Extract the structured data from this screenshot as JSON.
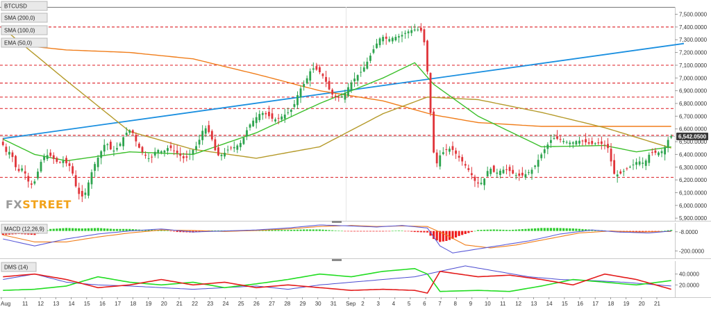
{
  "symbol": "BTCUSD",
  "watermark": {
    "fx": "FX",
    "street": "STREET"
  },
  "colors": {
    "bull": "#2da44e",
    "bear": "#e0343a",
    "sma200": "#f07d1a",
    "sma100": "#b59a2a",
    "ema50": "#3bbf2a",
    "trendline": "#1a8fe0",
    "level": "#e0343a",
    "macd": "#5a5ad8",
    "signal": "#f07d1a",
    "hist_pos": "#2ecc2e",
    "hist_neg": "#ee1c1c",
    "dms_plus": "#22dd22",
    "dms_minus": "#e31b1b",
    "adx": "#4a4ad0"
  },
  "chart_data": [
    {
      "type": "candlestick",
      "panel": "price",
      "title": "BTCUSD",
      "x_ticks": [
        "Aug",
        "11",
        "12",
        "13",
        "14",
        "15",
        "16",
        "17",
        "18",
        "19",
        "20",
        "21",
        "22",
        "23",
        "24",
        "25",
        "26",
        "27",
        "28",
        "29",
        "30",
        "31",
        "Sep",
        "2",
        "3",
        "4",
        "5",
        "6",
        "7",
        "8",
        "9",
        "10",
        "11",
        "12",
        "13",
        "14",
        "15",
        "16",
        "17",
        "18",
        "19",
        "20",
        "21"
      ],
      "y_ticks": [
        "7,500.0000",
        "7,400.0000",
        "7,300.0000",
        "7,200.0000",
        "7,100.0000",
        "7,000.0000",
        "6,900.0000",
        "6,800.0000",
        "6,700.0000",
        "6,600.0000",
        "6,500.0000",
        "6,400.0000",
        "6,300.0000",
        "6,200.0000",
        "6,100.0000",
        "6,000.0000",
        "5,900.0000"
      ],
      "ylim": [
        5890,
        7530
      ],
      "last_price": "6,542.0500",
      "horizontal_levels": [
        7400,
        7100,
        6960,
        6850,
        6760,
        6550,
        6220
      ],
      "legend": [
        "SMA (200,0)",
        "SMA (100,0)",
        "EMA (50,0)"
      ],
      "price_path": [
        [
          0,
          6500
        ],
        [
          1.5,
          6420
        ],
        [
          3,
          6420
        ],
        [
          5,
          6260
        ],
        [
          7,
          6300
        ],
        [
          8,
          6200
        ],
        [
          10,
          6150
        ],
        [
          13,
          6380
        ],
        [
          15,
          6400
        ],
        [
          18,
          6330
        ],
        [
          19.5,
          6350
        ],
        [
          22,
          6300
        ],
        [
          24,
          6100
        ],
        [
          26,
          6060
        ],
        [
          29,
          6300
        ],
        [
          31,
          6400
        ],
        [
          33,
          6500
        ],
        [
          35,
          6420
        ],
        [
          37,
          6460
        ],
        [
          39,
          6560
        ],
        [
          41,
          6600
        ],
        [
          43,
          6470
        ],
        [
          45,
          6400
        ],
        [
          47,
          6360
        ],
        [
          49,
          6440
        ],
        [
          51,
          6420
        ],
        [
          53,
          6460
        ],
        [
          56,
          6400
        ],
        [
          58,
          6360
        ],
        [
          60,
          6420
        ],
        [
          62,
          6480
        ],
        [
          64,
          6620
        ],
        [
          66,
          6560
        ],
        [
          68,
          6390
        ],
        [
          70,
          6400
        ],
        [
          72,
          6450
        ],
        [
          74,
          6460
        ],
        [
          76,
          6500
        ],
        [
          78,
          6620
        ],
        [
          80,
          6680
        ],
        [
          82,
          6730
        ],
        [
          84,
          6710
        ],
        [
          86,
          6670
        ],
        [
          88,
          6690
        ],
        [
          90,
          6720
        ],
        [
          92,
          6760
        ],
        [
          94,
          6900
        ],
        [
          96,
          6970
        ],
        [
          98,
          7080
        ],
        [
          100,
          7060
        ],
        [
          102,
          7000
        ],
        [
          104,
          6880
        ],
        [
          106,
          6840
        ],
        [
          108,
          6860
        ],
        [
          110,
          6950
        ],
        [
          112,
          7010
        ],
        [
          114,
          7060
        ],
        [
          116,
          7150
        ],
        [
          118,
          7250
        ],
        [
          120,
          7330
        ],
        [
          122,
          7300
        ],
        [
          124,
          7320
        ],
        [
          126,
          7330
        ],
        [
          128,
          7360
        ],
        [
          130,
          7380
        ],
        [
          132,
          7380
        ],
        [
          133,
          7360
        ],
        [
          134,
          7200
        ],
        [
          135,
          6900
        ],
        [
          136,
          6550
        ],
        [
          137,
          6280
        ],
        [
          138,
          6380
        ],
        [
          140,
          6430
        ],
        [
          142,
          6450
        ],
        [
          144,
          6390
        ],
        [
          146,
          6330
        ],
        [
          148,
          6260
        ],
        [
          150,
          6170
        ],
        [
          152,
          6180
        ],
        [
          154,
          6300
        ],
        [
          156,
          6250
        ],
        [
          158,
          6280
        ],
        [
          160,
          6280
        ],
        [
          162,
          6240
        ],
        [
          164,
          6230
        ],
        [
          166,
          6250
        ],
        [
          168,
          6290
        ],
        [
          170,
          6380
        ],
        [
          172,
          6460
        ],
        [
          174,
          6530
        ],
        [
          176,
          6520
        ],
        [
          178,
          6500
        ],
        [
          180,
          6490
        ],
        [
          182,
          6510
        ],
        [
          184,
          6500
        ],
        [
          186,
          6480
        ],
        [
          188,
          6490
        ],
        [
          190,
          6480
        ],
        [
          192,
          6440
        ],
        [
          193,
          6250
        ],
        [
          195,
          6240
        ],
        [
          197,
          6280
        ],
        [
          199,
          6310
        ],
        [
          201,
          6350
        ],
        [
          203,
          6330
        ],
        [
          205,
          6420
        ],
        [
          207,
          6410
        ],
        [
          209,
          6430
        ],
        [
          211,
          6542
        ]
      ],
      "overlays": {
        "sma200": [
          [
            0,
            7270
          ],
          [
            20,
            7220
          ],
          [
            40,
            7200
          ],
          [
            60,
            7150
          ],
          [
            80,
            7030
          ],
          [
            100,
            6900
          ],
          [
            120,
            6820
          ],
          [
            136,
            6710
          ],
          [
            150,
            6650
          ],
          [
            170,
            6620
          ],
          [
            190,
            6620
          ],
          [
            211,
            6620
          ]
        ],
        "sma100": [
          [
            0,
            7390
          ],
          [
            20,
            6980
          ],
          [
            40,
            6580
          ],
          [
            60,
            6440
          ],
          [
            80,
            6370
          ],
          [
            100,
            6460
          ],
          [
            120,
            6720
          ],
          [
            134,
            6850
          ],
          [
            150,
            6830
          ],
          [
            170,
            6730
          ],
          [
            190,
            6610
          ],
          [
            211,
            6450
          ]
        ],
        "ema50": [
          [
            0,
            6520
          ],
          [
            10,
            6400
          ],
          [
            20,
            6350
          ],
          [
            40,
            6420
          ],
          [
            60,
            6400
          ],
          [
            80,
            6570
          ],
          [
            100,
            6800
          ],
          [
            120,
            7000
          ],
          [
            130,
            7120
          ],
          [
            136,
            6950
          ],
          [
            150,
            6700
          ],
          [
            170,
            6460
          ],
          [
            190,
            6470
          ],
          [
            200,
            6420
          ],
          [
            211,
            6460
          ]
        ],
        "trendline": [
          [
            0,
            6525
          ],
          [
            215,
            7270
          ]
        ]
      }
    },
    {
      "type": "macd",
      "panel": "macd",
      "title": "MACD (12,26,9)",
      "y_ticks": [
        "-8.0000",
        "-200.0000"
      ],
      "ylim": [
        -260,
        60
      ],
      "macd": [
        [
          0,
          -80
        ],
        [
          10,
          -150
        ],
        [
          20,
          -80
        ],
        [
          30,
          -30
        ],
        [
          40,
          0
        ],
        [
          50,
          20
        ],
        [
          60,
          -10
        ],
        [
          70,
          0
        ],
        [
          80,
          10
        ],
        [
          90,
          30
        ],
        [
          100,
          60
        ],
        [
          110,
          50
        ],
        [
          118,
          40
        ],
        [
          126,
          55
        ],
        [
          134,
          30
        ],
        [
          138,
          -150
        ],
        [
          142,
          -220
        ],
        [
          148,
          -190
        ],
        [
          156,
          -150
        ],
        [
          166,
          -100
        ],
        [
          176,
          -30
        ],
        [
          186,
          10
        ],
        [
          194,
          -10
        ],
        [
          204,
          -20
        ],
        [
          211,
          0
        ]
      ],
      "signal": [
        [
          0,
          -40
        ],
        [
          10,
          -110
        ],
        [
          20,
          -110
        ],
        [
          30,
          -60
        ],
        [
          40,
          -20
        ],
        [
          50,
          10
        ],
        [
          60,
          5
        ],
        [
          70,
          -5
        ],
        [
          80,
          5
        ],
        [
          90,
          20
        ],
        [
          100,
          45
        ],
        [
          110,
          55
        ],
        [
          118,
          45
        ],
        [
          126,
          50
        ],
        [
          134,
          45
        ],
        [
          140,
          -40
        ],
        [
          146,
          -140
        ],
        [
          154,
          -170
        ],
        [
          162,
          -140
        ],
        [
          172,
          -80
        ],
        [
          182,
          -20
        ],
        [
          192,
          0
        ],
        [
          200,
          -10
        ],
        [
          211,
          -5
        ]
      ],
      "histogram": [
        [
          0,
          -40
        ],
        [
          5,
          -30
        ],
        [
          10,
          -40
        ],
        [
          15,
          20
        ],
        [
          20,
          30
        ],
        [
          25,
          25
        ],
        [
          30,
          30
        ],
        [
          35,
          20
        ],
        [
          40,
          20
        ],
        [
          45,
          10
        ],
        [
          50,
          10
        ],
        [
          55,
          -10
        ],
        [
          60,
          -15
        ],
        [
          65,
          5
        ],
        [
          70,
          5
        ],
        [
          75,
          5
        ],
        [
          80,
          5
        ],
        [
          85,
          10
        ],
        [
          90,
          10
        ],
        [
          95,
          15
        ],
        [
          100,
          15
        ],
        [
          105,
          5
        ],
        [
          110,
          -5
        ],
        [
          115,
          -5
        ],
        [
          120,
          -5
        ],
        [
          125,
          5
        ],
        [
          130,
          -10
        ],
        [
          134,
          -15
        ],
        [
          136,
          -80
        ],
        [
          138,
          -110
        ],
        [
          140,
          -100
        ],
        [
          142,
          -80
        ],
        [
          144,
          -50
        ],
        [
          146,
          -30
        ],
        [
          148,
          -10
        ],
        [
          150,
          10
        ],
        [
          155,
          15
        ],
        [
          160,
          10
        ],
        [
          165,
          20
        ],
        [
          170,
          30
        ],
        [
          175,
          30
        ],
        [
          180,
          25
        ],
        [
          185,
          15
        ],
        [
          190,
          5
        ],
        [
          195,
          -15
        ],
        [
          200,
          -10
        ],
        [
          205,
          -10
        ],
        [
          211,
          10
        ]
      ]
    },
    {
      "type": "dms",
      "panel": "dms",
      "title": "DMS (14)",
      "y_ticks": [
        "40.0000",
        "20.0000"
      ],
      "ylim": [
        0,
        60
      ],
      "plus_di": [
        [
          0,
          10
        ],
        [
          10,
          12
        ],
        [
          20,
          18
        ],
        [
          30,
          35
        ],
        [
          40,
          25
        ],
        [
          50,
          20
        ],
        [
          60,
          25
        ],
        [
          70,
          15
        ],
        [
          80,
          22
        ],
        [
          90,
          30
        ],
        [
          100,
          40
        ],
        [
          110,
          35
        ],
        [
          120,
          45
        ],
        [
          130,
          50
        ],
        [
          134,
          40
        ],
        [
          138,
          8
        ],
        [
          150,
          10
        ],
        [
          160,
          8
        ],
        [
          170,
          18
        ],
        [
          180,
          30
        ],
        [
          190,
          25
        ],
        [
          200,
          20
        ],
        [
          211,
          28
        ]
      ],
      "minus_di": [
        [
          0,
          35
        ],
        [
          10,
          40
        ],
        [
          20,
          30
        ],
        [
          30,
          15
        ],
        [
          40,
          20
        ],
        [
          50,
          30
        ],
        [
          60,
          20
        ],
        [
          70,
          25
        ],
        [
          80,
          15
        ],
        [
          90,
          20
        ],
        [
          100,
          15
        ],
        [
          110,
          10
        ],
        [
          120,
          12
        ],
        [
          130,
          10
        ],
        [
          134,
          5
        ],
        [
          138,
          45
        ],
        [
          150,
          35
        ],
        [
          160,
          38
        ],
        [
          170,
          30
        ],
        [
          180,
          20
        ],
        [
          190,
          40
        ],
        [
          200,
          30
        ],
        [
          211,
          12
        ]
      ],
      "adx": [
        [
          0,
          30
        ],
        [
          10,
          40
        ],
        [
          20,
          25
        ],
        [
          30,
          20
        ],
        [
          40,
          18
        ],
        [
          50,
          15
        ],
        [
          60,
          12
        ],
        [
          70,
          15
        ],
        [
          80,
          18
        ],
        [
          90,
          12
        ],
        [
          100,
          20
        ],
        [
          110,
          25
        ],
        [
          120,
          30
        ],
        [
          130,
          35
        ],
        [
          138,
          45
        ],
        [
          146,
          55
        ],
        [
          156,
          45
        ],
        [
          166,
          35
        ],
        [
          176,
          30
        ],
        [
          186,
          28
        ],
        [
          196,
          25
        ],
        [
          211,
          18
        ]
      ]
    }
  ]
}
